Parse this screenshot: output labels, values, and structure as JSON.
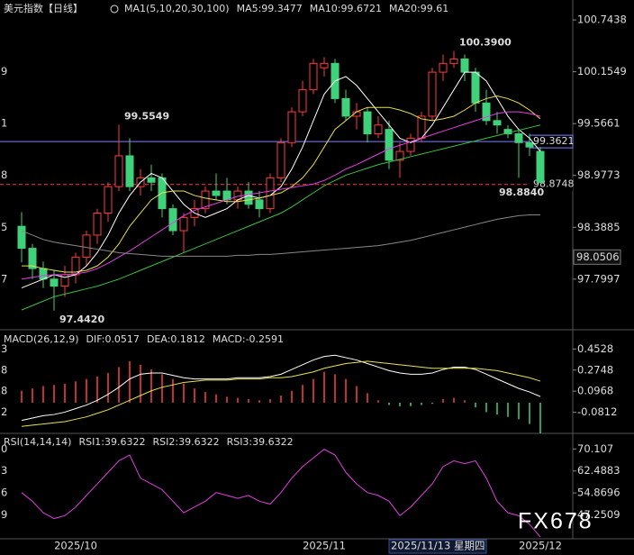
{
  "chart_data": [
    {
      "type": "candlestick",
      "title": "美元指数【日线】",
      "legend_items": [
        {
          "text": "MA1(5,10,20,30,100)",
          "color": "#ffffff"
        },
        {
          "text": "MA5:99.3477",
          "color": "#ffffff"
        },
        {
          "text": "MA10:99.6721",
          "color": "#e8e050"
        },
        {
          "text": "MA20:99.61",
          "color": "#e040e0"
        }
      ],
      "categories": [
        null,
        null,
        null,
        null,
        null,
        "2025/10",
        null,
        null,
        null,
        null,
        null,
        null,
        null,
        null,
        null,
        null,
        null,
        null,
        null,
        null,
        null,
        null,
        null,
        null,
        null,
        null,
        null,
        null,
        "2025/11",
        null,
        null,
        null,
        null,
        null,
        null,
        null,
        "2025/11/13 星期四",
        null,
        null,
        null,
        null,
        null,
        null,
        null,
        null,
        null,
        null,
        null,
        "2025/12"
      ],
      "crosshair": 36,
      "open": [
        98.4,
        98.15,
        97.92,
        97.8,
        97.72,
        97.85,
        98.05,
        98.3,
        98.55,
        98.85,
        99.2,
        98.85,
        98.95,
        98.95,
        98.6,
        98.35,
        98.5,
        98.6,
        98.8,
        98.8,
        98.7,
        98.8,
        98.7,
        98.6,
        98.95,
        99.35,
        99.7,
        99.95,
        100.2,
        100.25,
        99.85,
        99.65,
        99.7,
        99.45,
        99.5,
        99.15,
        99.25,
        99.4,
        99.65,
        100.15,
        100.25,
        100.3,
        100.15,
        99.8,
        99.6,
        99.5,
        99.45,
        99.35,
        99.25
      ],
      "high": [
        98.56,
        98.2,
        98.0,
        97.9,
        97.95,
        98.1,
        98.35,
        98.6,
        98.9,
        99.5549,
        99.4,
        99.05,
        99.1,
        99.0,
        98.65,
        98.55,
        98.7,
        98.85,
        99.0,
        98.95,
        98.85,
        98.9,
        98.8,
        99.0,
        99.4,
        99.75,
        100.05,
        100.3,
        100.32,
        100.3,
        99.95,
        99.8,
        99.75,
        99.65,
        99.6,
        99.35,
        99.45,
        99.7,
        100.2,
        100.35,
        100.39,
        100.35,
        100.2,
        99.95,
        99.7,
        99.55,
        99.5,
        99.45,
        99.3
      ],
      "low": [
        97.99,
        97.8,
        97.7,
        97.442,
        97.6,
        97.75,
        97.95,
        98.2,
        98.45,
        98.8,
        98.8,
        98.75,
        98.8,
        98.5,
        98.3,
        98.1,
        98.4,
        98.55,
        98.7,
        98.65,
        98.6,
        98.6,
        98.5,
        98.55,
        98.9,
        99.3,
        99.65,
        99.9,
        100.1,
        99.8,
        99.6,
        99.5,
        99.35,
        99.4,
        99.05,
        98.95,
        99.2,
        99.35,
        99.6,
        100.05,
        100.2,
        100.05,
        99.7,
        99.55,
        99.45,
        99.4,
        98.95,
        99.2,
        98.884
      ],
      "close": [
        98.15,
        97.92,
        97.8,
        97.72,
        97.85,
        98.05,
        98.3,
        98.55,
        98.85,
        99.2,
        98.85,
        98.95,
        98.9,
        98.6,
        98.35,
        98.5,
        98.6,
        98.8,
        98.75,
        98.7,
        98.8,
        98.65,
        98.6,
        98.95,
        99.35,
        99.7,
        99.95,
        100.25,
        100.25,
        99.85,
        99.65,
        99.7,
        99.45,
        99.55,
        99.15,
        99.25,
        99.4,
        99.65,
        100.15,
        100.25,
        100.3,
        100.15,
        99.8,
        99.6,
        99.55,
        99.45,
        99.35,
        99.3,
        98.9
      ],
      "up_color": "#ff3b3b",
      "down_color": "#3fd27a",
      "series": [
        {
          "color": "#ffffff",
          "values": [
            97.7,
            97.75,
            97.8,
            97.85,
            97.82,
            97.85,
            97.95,
            98.1,
            98.3,
            98.55,
            98.75,
            98.9,
            99.0,
            98.95,
            98.8,
            98.65,
            98.55,
            98.5,
            98.55,
            98.6,
            98.7,
            98.75,
            98.72,
            98.75,
            98.85,
            99.05,
            99.3,
            99.6,
            99.9,
            100.05,
            100.1,
            100.0,
            99.85,
            99.7,
            99.55,
            99.4,
            99.35,
            99.4,
            99.55,
            99.75,
            99.95,
            100.15,
            100.15,
            100.05,
            99.85,
            99.65,
            99.5,
            99.4,
            99.25
          ]
        },
        {
          "color": "#e8e050",
          "values": [
            97.95,
            97.95,
            97.92,
            97.9,
            97.88,
            97.88,
            97.9,
            97.95,
            98.05,
            98.2,
            98.4,
            98.55,
            98.7,
            98.78,
            98.8,
            98.8,
            98.75,
            98.72,
            98.7,
            98.68,
            98.68,
            98.7,
            98.72,
            98.75,
            98.78,
            98.85,
            98.95,
            99.1,
            99.3,
            99.5,
            99.6,
            99.7,
            99.75,
            99.75,
            99.75,
            99.72,
            99.68,
            99.62,
            99.6,
            99.62,
            99.65,
            99.72,
            99.8,
            99.85,
            99.88,
            99.85,
            99.8,
            99.72,
            99.62
          ]
        },
        {
          "color": "#e040e0",
          "values": [
            97.8,
            97.82,
            97.84,
            97.85,
            97.85,
            97.86,
            97.88,
            97.92,
            97.98,
            98.05,
            98.12,
            98.2,
            98.28,
            98.36,
            98.44,
            98.52,
            98.58,
            98.62,
            98.66,
            98.7,
            98.74,
            98.76,
            98.78,
            98.8,
            98.82,
            98.84,
            98.86,
            98.88,
            98.92,
            98.98,
            99.05,
            99.1,
            99.16,
            99.22,
            99.28,
            99.32,
            99.36,
            99.4,
            99.44,
            99.48,
            99.52,
            99.56,
            99.6,
            99.64,
            99.68,
            99.7,
            99.7,
            99.68,
            99.65
          ]
        },
        {
          "color": "#3cc040",
          "values": [
            97.45,
            97.5,
            97.55,
            97.6,
            97.63,
            97.66,
            97.69,
            97.72,
            97.76,
            97.8,
            97.85,
            97.9,
            97.95,
            98.0,
            98.05,
            98.1,
            98.15,
            98.2,
            98.25,
            98.3,
            98.35,
            98.4,
            98.45,
            98.5,
            98.55,
            98.62,
            98.7,
            98.78,
            98.86,
            98.92,
            98.98,
            99.02,
            99.06,
            99.1,
            99.13,
            99.16,
            99.19,
            99.22,
            99.25,
            99.28,
            99.31,
            99.34,
            99.37,
            99.4,
            99.43,
            99.46,
            99.49,
            99.52,
            99.55
          ]
        },
        {
          "color": "#888888",
          "values": [
            98.35,
            98.3,
            98.25,
            98.22,
            98.2,
            98.18,
            98.16,
            98.14,
            98.12,
            98.1,
            98.09,
            98.08,
            98.07,
            98.06,
            98.06,
            98.06,
            98.06,
            98.06,
            98.06,
            98.06,
            98.07,
            98.07,
            98.08,
            98.08,
            98.09,
            98.1,
            98.11,
            98.12,
            98.13,
            98.14,
            98.15,
            98.16,
            98.17,
            98.18,
            98.2,
            98.22,
            98.24,
            98.27,
            98.3,
            98.33,
            98.36,
            98.39,
            98.42,
            98.45,
            98.48,
            98.5,
            98.52,
            98.53,
            98.53
          ]
        }
      ],
      "ylim": [
        97.225,
        100.949
      ],
      "yticks": [
        100.7438,
        100.1549,
        99.5661,
        98.9773,
        98.3885,
        97.7997
      ],
      "left_labels": [
        "9",
        "1",
        "8",
        "5",
        "7"
      ],
      "levels": [
        {
          "value": 99.3621,
          "color": "#8080ff",
          "style": "solid"
        },
        {
          "value": 98.8748,
          "color": "#ff3b3b",
          "style": "dashed"
        }
      ],
      "price_marks": [
        98.0506
      ],
      "annotations": [
        {
          "value": 100.39,
          "label": "100.3900",
          "color": "#ff4040"
        },
        {
          "value": 99.5549,
          "color": "#ff4040"
        },
        {
          "value": 97.442,
          "label": "97.4420",
          "color": "#40c0b0"
        },
        {
          "value": 98.884,
          "label": "98.8840",
          "color": "#40c0b0"
        }
      ]
    },
    {
      "type": "macd",
      "legend_items": [
        {
          "text": "MACD(26,12,9)",
          "color": "#ffffff"
        },
        {
          "text": "DIF:0.0517",
          "color": "#ffffff"
        },
        {
          "text": "DEA:0.1812",
          "color": "#e8e050"
        },
        {
          "text": "MACD:-0.2591",
          "color": "#e040e0"
        }
      ],
      "bars": [
        0.1,
        0.12,
        0.14,
        0.15,
        0.16,
        0.18,
        0.2,
        0.22,
        0.25,
        0.3,
        0.35,
        0.32,
        0.28,
        0.24,
        0.2,
        0.16,
        0.12,
        0.09,
        0.07,
        0.05,
        0.04,
        0.03,
        0.02,
        0.03,
        0.06,
        0.1,
        0.15,
        0.2,
        0.26,
        0.24,
        0.2,
        0.14,
        0.08,
        0.02,
        -0.02,
        -0.03,
        -0.03,
        -0.02,
        -0.01,
        0.03,
        0.04,
        0.02,
        -0.04,
        -0.08,
        -0.1,
        -0.12,
        -0.14,
        -0.18,
        -0.2591
      ],
      "up_color": "#ff4040",
      "down_color": "#3fd27a",
      "series": [
        {
          "color": "#ffffff",
          "values": [
            -0.15,
            -0.13,
            -0.11,
            -0.1,
            -0.08,
            -0.05,
            -0.02,
            0.02,
            0.07,
            0.13,
            0.2,
            0.24,
            0.25,
            0.25,
            0.23,
            0.21,
            0.2,
            0.2,
            0.2,
            0.2,
            0.21,
            0.21,
            0.21,
            0.22,
            0.24,
            0.28,
            0.32,
            0.36,
            0.39,
            0.4,
            0.38,
            0.36,
            0.33,
            0.3,
            0.27,
            0.25,
            0.24,
            0.24,
            0.25,
            0.28,
            0.3,
            0.3,
            0.28,
            0.24,
            0.2,
            0.16,
            0.12,
            0.09,
            0.0517
          ]
        },
        {
          "color": "#e8e050",
          "values": [
            -0.2,
            -0.19,
            -0.18,
            -0.17,
            -0.16,
            -0.14,
            -0.12,
            -0.09,
            -0.06,
            -0.02,
            0.02,
            0.06,
            0.1,
            0.13,
            0.15,
            0.17,
            0.18,
            0.19,
            0.19,
            0.19,
            0.2,
            0.2,
            0.2,
            0.21,
            0.21,
            0.22,
            0.24,
            0.26,
            0.29,
            0.31,
            0.33,
            0.34,
            0.35,
            0.34,
            0.33,
            0.32,
            0.31,
            0.3,
            0.29,
            0.29,
            0.29,
            0.29,
            0.29,
            0.28,
            0.27,
            0.25,
            0.23,
            0.21,
            0.1812
          ]
        }
      ],
      "ylim": [
        -0.2592,
        0.6076
      ],
      "yticks": [
        0.4528,
        0.2748,
        0.0968,
        -0.0812
      ],
      "left_labels": [
        "3",
        "8",
        "8",
        "2"
      ]
    },
    {
      "type": "rsi",
      "legend_items": [
        {
          "text": "RSI(14,14,14)",
          "color": "#ffffff"
        },
        {
          "text": "RSI1:39.6322",
          "color": "#ffffff"
        },
        {
          "text": "RSI2:39.6322",
          "color": "#e8e050"
        },
        {
          "text": "RSI3:39.6322",
          "color": "#e040e0"
        }
      ],
      "series": [
        {
          "color": "#e040e0",
          "values": [
            55,
            52,
            48,
            46,
            47,
            50,
            54,
            58,
            62,
            66,
            68,
            60,
            58,
            56,
            52,
            48,
            50,
            52,
            55,
            54,
            53,
            54,
            52,
            51,
            55,
            60,
            64,
            67,
            70,
            68,
            62,
            58,
            55,
            54,
            52,
            47,
            50,
            54,
            58,
            64,
            66,
            65,
            66,
            60,
            52,
            48,
            47,
            44,
            39.6322
          ]
        }
      ],
      "ylim": [
        38.99,
        75.19
      ],
      "yticks": [
        70.107,
        62.4883,
        54.8696,
        47.2509
      ],
      "left_labels": [
        "0",
        "3",
        "6",
        "9"
      ]
    }
  ],
  "watermark": "FX678"
}
